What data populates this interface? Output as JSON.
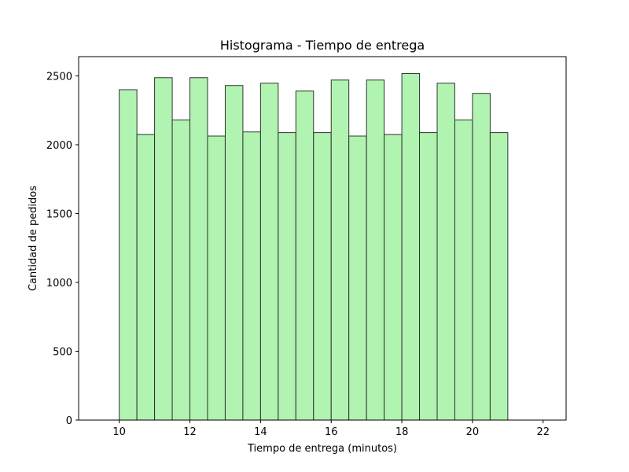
{
  "chart_data": {
    "type": "bar",
    "title": "Histograma - Tiempo de entrega",
    "xlabel": "Tiempo de entrega (minutos)",
    "ylabel": "Cantidad de pedidos",
    "xlim": [
      8.85,
      22.65
    ],
    "ylim": [
      0,
      2640
    ],
    "xticks": [
      10,
      12,
      14,
      16,
      18,
      20,
      22
    ],
    "yticks": [
      0,
      500,
      1000,
      1500,
      2000,
      2500
    ],
    "grid": false,
    "bin_width": 0.5,
    "bins": [
      {
        "start": 10.0,
        "end": 10.5,
        "count": 2400
      },
      {
        "start": 10.5,
        "end": 11.0,
        "count": 2075
      },
      {
        "start": 11.0,
        "end": 11.5,
        "count": 2487
      },
      {
        "start": 11.5,
        "end": 12.0,
        "count": 2180
      },
      {
        "start": 12.0,
        "end": 12.5,
        "count": 2487
      },
      {
        "start": 12.5,
        "end": 13.0,
        "count": 2063
      },
      {
        "start": 13.0,
        "end": 13.5,
        "count": 2430
      },
      {
        "start": 13.5,
        "end": 14.0,
        "count": 2093
      },
      {
        "start": 14.0,
        "end": 14.5,
        "count": 2447
      },
      {
        "start": 14.5,
        "end": 15.0,
        "count": 2088
      },
      {
        "start": 15.0,
        "end": 15.5,
        "count": 2390
      },
      {
        "start": 15.5,
        "end": 16.0,
        "count": 2088
      },
      {
        "start": 16.0,
        "end": 16.5,
        "count": 2470
      },
      {
        "start": 16.5,
        "end": 17.0,
        "count": 2063
      },
      {
        "start": 17.0,
        "end": 17.5,
        "count": 2470
      },
      {
        "start": 17.5,
        "end": 18.0,
        "count": 2075
      },
      {
        "start": 18.0,
        "end": 18.5,
        "count": 2517
      },
      {
        "start": 18.5,
        "end": 19.0,
        "count": 2088
      },
      {
        "start": 19.0,
        "end": 19.5,
        "count": 2447
      },
      {
        "start": 19.5,
        "end": 20.0,
        "count": 2180
      },
      {
        "start": 20.0,
        "end": 20.5,
        "count": 2373
      },
      {
        "start": 20.5,
        "end": 21.0,
        "count": 2088
      }
    ],
    "colors": {
      "bar_fill": "#b1f3b1",
      "bar_edge": "#2d352d",
      "axes": "#000000",
      "background": "#ffffff"
    }
  }
}
